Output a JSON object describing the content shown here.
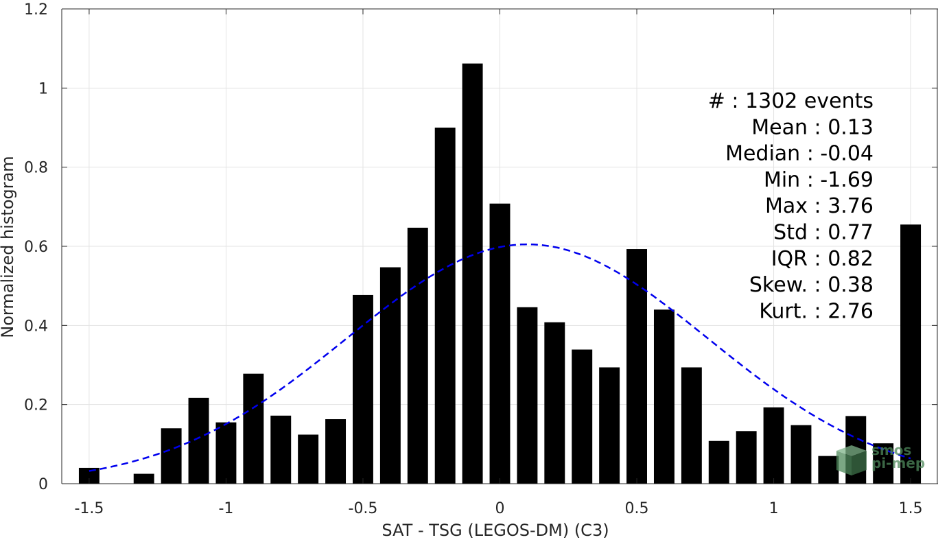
{
  "chart_data": {
    "type": "bar",
    "xlabel": "SAT - TSG (LEGOS-DM) (C3)",
    "ylabel": "Normalized histogram",
    "xlim": [
      -1.6,
      1.6
    ],
    "ylim": [
      0,
      1.2
    ],
    "xticks": [
      -1.5,
      -1,
      -0.5,
      0,
      0.5,
      1,
      1.5
    ],
    "xtick_labels": [
      "-1.5",
      "-1",
      "-0.5",
      "0",
      "0.5",
      "1",
      "1.5"
    ],
    "yticks": [
      0,
      0.2,
      0.4,
      0.6,
      0.8,
      1.0,
      1.2
    ],
    "ytick_labels": [
      "0",
      "0.2",
      "0.4",
      "0.6",
      "0.8",
      "1",
      "1.2"
    ],
    "grid": true,
    "bar_color": "#000000",
    "fit_color": "#0000ee",
    "bin_width": 0.1,
    "bins": [
      {
        "x": -1.5,
        "y": 0.04
      },
      {
        "x": -1.4,
        "y": 0.0
      },
      {
        "x": -1.3,
        "y": 0.025
      },
      {
        "x": -1.2,
        "y": 0.14
      },
      {
        "x": -1.1,
        "y": 0.217
      },
      {
        "x": -1.0,
        "y": 0.155
      },
      {
        "x": -0.9,
        "y": 0.278
      },
      {
        "x": -0.8,
        "y": 0.172
      },
      {
        "x": -0.7,
        "y": 0.124
      },
      {
        "x": -0.6,
        "y": 0.163
      },
      {
        "x": -0.5,
        "y": 0.477
      },
      {
        "x": -0.4,
        "y": 0.547
      },
      {
        "x": -0.3,
        "y": 0.647
      },
      {
        "x": -0.2,
        "y": 0.9
      },
      {
        "x": -0.1,
        "y": 1.062
      },
      {
        "x": 0.0,
        "y": 0.708
      },
      {
        "x": 0.1,
        "y": 0.446
      },
      {
        "x": 0.2,
        "y": 0.408
      },
      {
        "x": 0.3,
        "y": 0.339
      },
      {
        "x": 0.4,
        "y": 0.294
      },
      {
        "x": 0.5,
        "y": 0.593
      },
      {
        "x": 0.6,
        "y": 0.44
      },
      {
        "x": 0.7,
        "y": 0.294
      },
      {
        "x": 0.8,
        "y": 0.108
      },
      {
        "x": 0.9,
        "y": 0.133
      },
      {
        "x": 1.0,
        "y": 0.193
      },
      {
        "x": 1.1,
        "y": 0.148
      },
      {
        "x": 1.2,
        "y": 0.07
      },
      {
        "x": 1.3,
        "y": 0.171
      },
      {
        "x": 1.4,
        "y": 0.102
      },
      {
        "x": 1.5,
        "y": 0.655
      }
    ],
    "fit": {
      "type": "gaussian",
      "mean": 0.1,
      "std": 0.66,
      "peak": 0.605,
      "x_range": [
        -1.5,
        1.5
      ]
    },
    "stats": [
      "#  : 1302 events",
      "Mean : 0.13",
      "Median : -0.04",
      "Min : -1.69",
      "Max : 3.76",
      "Std : 0.77",
      "IQR : 0.82",
      "Skew. : 0.38",
      "Kurt. : 2.76"
    ]
  },
  "watermark": {
    "line1": "smos",
    "line2": "pi-mep"
  }
}
